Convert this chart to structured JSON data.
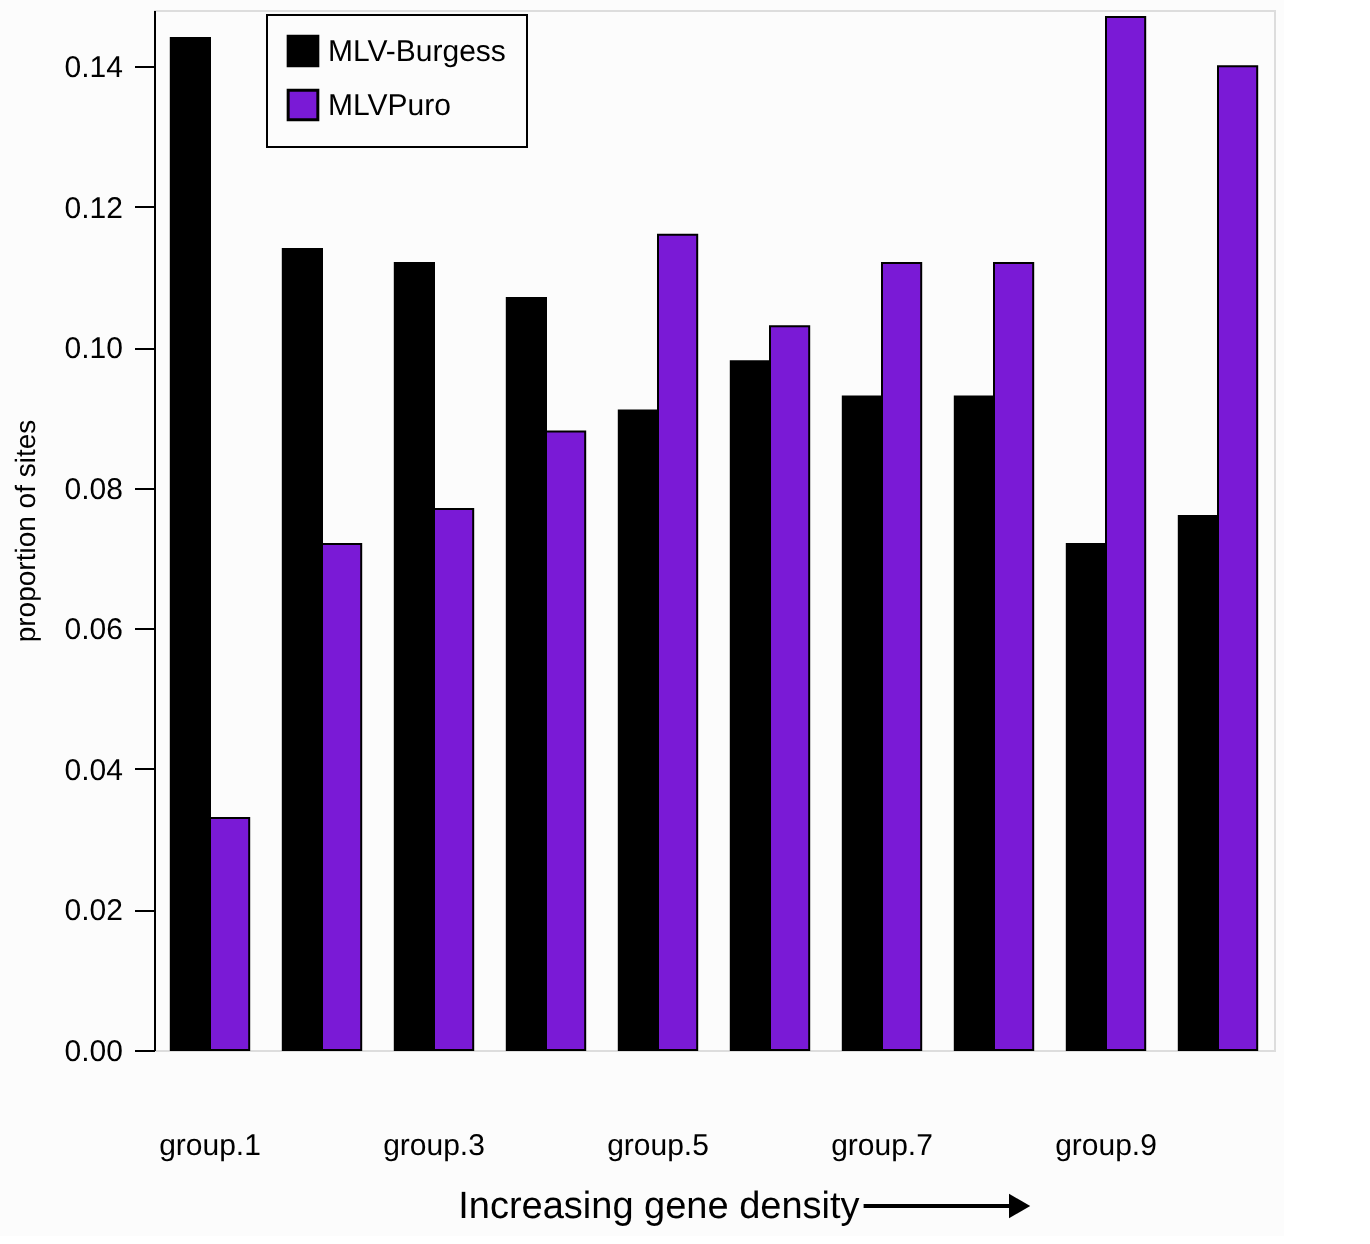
{
  "chart_data": {
    "type": "bar",
    "xlabel": "Increasing gene density",
    "ylabel": "proportion of sites",
    "categories": [
      "group.1",
      null,
      "group.3",
      null,
      "group.5",
      null,
      "group.7",
      null,
      "group.9",
      null
    ],
    "series": [
      {
        "name": "MLV-Burgess",
        "color": "#000000",
        "values": [
          0.144,
          0.114,
          0.112,
          0.107,
          0.091,
          0.098,
          0.093,
          0.093,
          0.072,
          0.076
        ]
      },
      {
        "name": "MLVPuro",
        "color": "#7a1ad6",
        "values": [
          0.033,
          0.072,
          0.077,
          0.088,
          0.116,
          0.103,
          0.112,
          0.112,
          0.147,
          0.14
        ]
      }
    ],
    "ylim": [
      0,
      0.148
    ],
    "yticks": [
      {
        "value": 0,
        "label": "0.00"
      },
      0.02,
      0.04,
      0.06,
      0.08,
      {
        "value": 0.1,
        "label": "0.10"
      },
      0.12,
      0.14
    ],
    "grid": false,
    "legend": "top left"
  }
}
